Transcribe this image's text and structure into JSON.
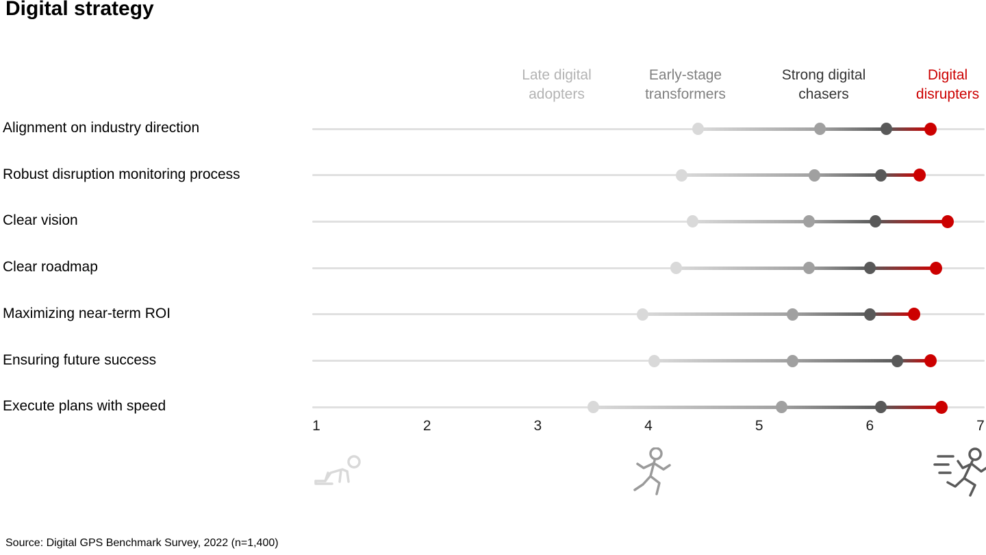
{
  "page_title": "Digital strategy",
  "source_note": "Source: Digital GPS Benchmark Survey, 2022 (n=1,400)",
  "colors": {
    "late_dot": "#d9d9d9",
    "early_dot": "#a0a0a0",
    "strong_dot": "#595959",
    "disrupter_red": "#cc0000",
    "late_label": "#b3b3b3",
    "early_label": "#808080",
    "strong_label": "#333333",
    "track_line": "#e0e0e0"
  },
  "chart_data": {
    "type": "scatter",
    "subtype": "dumbbell-dot-plot",
    "title": "Digital strategy",
    "xlabel": "",
    "ylabel": "",
    "xlim": [
      1,
      7
    ],
    "x_ticks": [
      "1",
      "2",
      "3",
      "4",
      "5",
      "6",
      "7"
    ],
    "grid": "off",
    "legend_position": "top",
    "categories": [
      "Alignment on industry direction",
      "Robust disruption monitoring process",
      "Clear vision",
      "Clear roadmap",
      "Maximizing near-term ROI",
      "Ensuring future success",
      "Execute plans with speed"
    ],
    "series": [
      {
        "name": "Late digital adopters",
        "color": "#d9d9d9",
        "label_color": "#b3b3b3",
        "values": [
          4.45,
          4.3,
          4.4,
          4.25,
          3.95,
          4.05,
          3.5
        ]
      },
      {
        "name": "Early-stage transformers",
        "color": "#a0a0a0",
        "label_color": "#808080",
        "values": [
          5.55,
          5.5,
          5.45,
          5.45,
          5.3,
          5.3,
          5.2
        ]
      },
      {
        "name": "Strong digital chasers",
        "color": "#595959",
        "label_color": "#333333",
        "values": [
          6.15,
          6.1,
          6.05,
          6.0,
          6.0,
          6.25,
          6.1
        ]
      },
      {
        "name": "Digital disrupters",
        "color": "#cc0000",
        "label_color": "#cc0000",
        "values": [
          6.55,
          6.45,
          6.7,
          6.6,
          6.4,
          6.55,
          6.65
        ]
      }
    ],
    "icons": [
      {
        "name": "crawling-person-icon",
        "color": "#d9d9d9"
      },
      {
        "name": "running-person-icon",
        "color": "#9a9a9a"
      },
      {
        "name": "sprinting-person-icon",
        "color": "#595959"
      }
    ],
    "source": "Source: Digital GPS Benchmark Survey, 2022 (n=1,400)"
  }
}
